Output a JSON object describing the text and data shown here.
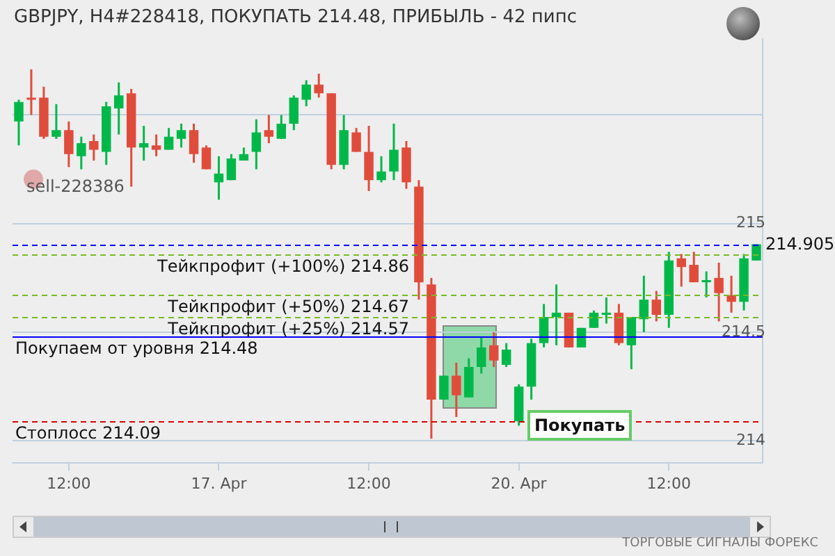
{
  "chart_data": {
    "type": "candlestick",
    "title": "GBPJPY, H4#228418, ПОКУПАТЬ 214.48, ПРИБЫЛЬ - 42 пипс",
    "categories": [
      null,
      null,
      null,
      null,
      "12:00",
      null,
      null,
      null,
      null,
      null,
      null,
      null,
      null,
      null,
      null,
      null,
      "17. Apr",
      null,
      null,
      null,
      null,
      null,
      null,
      null,
      null,
      null,
      null,
      null,
      "12:00",
      null,
      null,
      null,
      null,
      null,
      null,
      null,
      null,
      null,
      null,
      null,
      "20. Apr",
      null,
      null,
      null,
      null,
      null,
      null,
      null,
      null,
      null,
      null,
      null,
      "12:00",
      null,
      null,
      null,
      null,
      null,
      null,
      null
    ],
    "ohlc": [
      [
        215.47,
        215.57,
        215.36,
        215.56
      ],
      [
        215.58,
        215.71,
        215.5,
        215.57
      ],
      [
        215.58,
        215.63,
        215.39,
        215.4
      ],
      [
        215.4,
        215.55,
        215.39,
        215.43
      ],
      [
        215.43,
        215.47,
        215.26,
        215.32
      ],
      [
        215.31,
        215.4,
        215.25,
        215.37
      ],
      [
        215.38,
        215.41,
        215.29,
        215.34
      ],
      [
        215.33,
        215.56,
        215.27,
        215.54
      ],
      [
        215.53,
        215.65,
        215.41,
        215.59
      ],
      [
        215.6,
        215.62,
        215.17,
        215.35
      ],
      [
        215.35,
        215.45,
        215.29,
        215.37
      ],
      [
        215.36,
        215.41,
        215.31,
        215.34
      ],
      [
        215.34,
        215.44,
        215.34,
        215.4
      ],
      [
        215.39,
        215.46,
        215.35,
        215.43
      ],
      [
        215.43,
        215.46,
        215.28,
        215.32
      ],
      [
        215.35,
        215.36,
        215.25,
        215.25
      ],
      [
        215.19,
        215.31,
        215.11,
        215.23
      ],
      [
        215.2,
        215.32,
        215.2,
        215.3
      ],
      [
        215.29,
        215.35,
        215.29,
        215.32
      ],
      [
        215.33,
        215.48,
        215.25,
        215.42
      ],
      [
        215.43,
        215.5,
        215.37,
        215.4
      ],
      [
        215.39,
        215.5,
        215.39,
        215.46
      ],
      [
        215.46,
        215.59,
        215.43,
        215.58
      ],
      [
        215.57,
        215.66,
        215.54,
        215.64
      ],
      [
        215.64,
        215.69,
        215.58,
        215.6
      ],
      [
        215.6,
        215.6,
        215.25,
        215.27
      ],
      [
        215.27,
        215.5,
        215.25,
        215.43
      ],
      [
        215.42,
        215.44,
        215.33,
        215.33
      ],
      [
        215.33,
        215.45,
        215.15,
        215.2
      ],
      [
        215.2,
        215.31,
        215.19,
        215.24
      ],
      [
        215.24,
        215.46,
        215.2,
        215.34
      ],
      [
        215.35,
        215.38,
        215.16,
        215.19
      ],
      [
        215.17,
        215.2,
        214.65,
        214.73
      ],
      [
        214.72,
        214.75,
        214.01,
        214.19
      ],
      [
        214.19,
        214.3,
        214.19,
        214.3
      ],
      [
        214.3,
        214.36,
        214.11,
        214.21
      ],
      [
        214.2,
        214.38,
        214.2,
        214.34
      ],
      [
        214.34,
        214.48,
        214.31,
        214.43
      ],
      [
        214.44,
        214.5,
        214.34,
        214.37
      ],
      [
        214.35,
        214.45,
        214.34,
        214.42
      ],
      [
        214.09,
        214.26,
        214.07,
        214.25
      ],
      [
        214.25,
        214.47,
        214.19,
        214.45
      ],
      [
        214.45,
        214.63,
        214.43,
        214.57
      ],
      [
        214.57,
        214.72,
        214.44,
        214.59
      ],
      [
        214.59,
        214.59,
        214.43,
        214.43
      ],
      [
        214.43,
        214.52,
        214.43,
        214.52
      ],
      [
        214.52,
        214.6,
        214.52,
        214.59
      ],
      [
        214.58,
        214.66,
        214.54,
        214.59
      ],
      [
        214.59,
        214.63,
        214.44,
        214.45
      ],
      [
        214.44,
        214.57,
        214.33,
        214.57
      ],
      [
        214.56,
        214.76,
        214.5,
        214.65
      ],
      [
        214.65,
        214.69,
        214.55,
        214.58
      ],
      [
        214.58,
        214.87,
        214.52,
        214.83
      ],
      [
        214.84,
        214.86,
        214.71,
        214.8
      ],
      [
        214.81,
        214.87,
        214.73,
        214.73
      ],
      [
        214.73,
        214.78,
        214.66,
        214.74
      ],
      [
        214.75,
        214.82,
        214.55,
        214.68
      ],
      [
        214.67,
        214.76,
        214.59,
        214.64
      ],
      [
        214.64,
        214.86,
        214.6,
        214.84
      ],
      [
        214.83,
        214.905,
        214.83,
        214.905
      ]
    ],
    "colors": [
      "#00b84a",
      "#e04c3c",
      "#e04c3c",
      "#00b84a",
      "#e04c3c",
      "#00b84a",
      "#e04c3c",
      "#00b84a",
      "#00b84a",
      "#e04c3c",
      "#00b84a",
      "#e04c3c",
      "#00b84a",
      "#00b84a",
      "#e04c3c",
      "#e04c3c",
      "#00b84a",
      "#00b84a",
      "#00b84a",
      "#00b84a",
      "#e04c3c",
      "#00b84a",
      "#00b84a",
      "#00b84a",
      "#e04c3c",
      "#e04c3c",
      "#00b84a",
      "#e04c3c",
      "#e04c3c",
      "#00b84a",
      "#00b84a",
      "#e04c3c",
      "#e04c3c",
      "#e04c3c",
      "#00b84a",
      "#e04c3c",
      "#00b84a",
      "#00b84a",
      "#e04c3c",
      "#00b84a",
      "#00b84a",
      "#00b84a",
      "#00b84a",
      "#00b84a",
      "#e04c3c",
      "#00b84a",
      "#00b84a",
      "#00b84a",
      "#e04c3c",
      "#00b84a",
      "#00b84a",
      "#e04c3c",
      "#00b84a",
      "#e04c3c",
      "#e04c3c",
      "#00b84a",
      "#e04c3c",
      "#e04c3c",
      "#00b84a",
      "#00b84a"
    ],
    "ylim": [
      213.9,
      215.85
    ],
    "yticks": [
      214,
      214.5,
      215,
      {
        "value": 215.5,
        "label": null
      }
    ],
    "grid": "y",
    "ref_lines": [
      {
        "axis": "y",
        "value": 214.905,
        "label": "214.905",
        "color": "#0000ff",
        "line_style": "dashed"
      },
      {
        "axis": "y",
        "value": 214.86,
        "label": "Тейкпрофит (+100%) 214.86",
        "color": "#77bb22",
        "line_style": "dashed"
      },
      {
        "axis": "y",
        "value": 214.67,
        "label": "Тейкпрофит (+50%) 214.67",
        "color": "#77bb22",
        "line_style": "dashed"
      },
      {
        "axis": "y",
        "value": 214.57,
        "label": "Тейкпрофит (+25%) 214.57",
        "color": "#77bb22",
        "line_style": "dashed"
      },
      {
        "axis": "y",
        "value": 214.48,
        "label": "Покупаем от уровня 214.48",
        "color": "#0000ff",
        "line_style": "solid"
      },
      {
        "axis": "y",
        "value": 214.09,
        "label": "Стоплосс 214.09",
        "color": "#dd0000",
        "line_style": "dashed"
      }
    ],
    "annotations": [
      "sell-228386",
      "Покупать",
      "ТОРГОВЫЕ СИГНАЛЫ ФОРЕКС"
    ]
  }
}
